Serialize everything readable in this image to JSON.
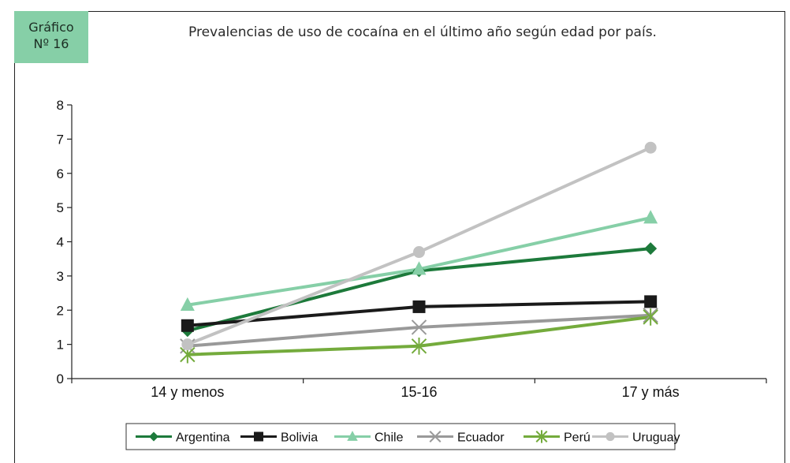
{
  "badge": {
    "line1": "Gráfico",
    "line2": "Nº 16"
  },
  "chart_data": {
    "type": "line",
    "title": "Prevalencias de uso de cocaína en el último año según edad por país.",
    "xlabel": "",
    "ylabel": "",
    "categories": [
      "14 y menos",
      "15-16",
      "17 y más"
    ],
    "ylim": [
      0,
      8
    ],
    "yticks": [
      0,
      1,
      2,
      3,
      4,
      5,
      6,
      7,
      8
    ],
    "grid": false,
    "legend_position": "bottom",
    "series": [
      {
        "name": "Argentina",
        "values": [
          1.4,
          3.15,
          3.8
        ],
        "color": "#1d7a3b",
        "marker": "diamond"
      },
      {
        "name": "Bolivia",
        "values": [
          1.55,
          2.1,
          2.25
        ],
        "color": "#1a1a1a",
        "marker": "square"
      },
      {
        "name": "Chile",
        "values": [
          2.15,
          3.2,
          4.7
        ],
        "color": "#86cfa7",
        "marker": "triangle"
      },
      {
        "name": "Ecuador",
        "values": [
          0.95,
          1.5,
          1.85
        ],
        "color": "#999999",
        "marker": "x"
      },
      {
        "name": "Perú",
        "values": [
          0.7,
          0.95,
          1.8
        ],
        "color": "#74ab3c",
        "marker": "asterisk"
      },
      {
        "name": "Uruguay",
        "values": [
          1.0,
          3.7,
          6.75
        ],
        "color": "#c2c2c2",
        "marker": "circle"
      }
    ]
  }
}
